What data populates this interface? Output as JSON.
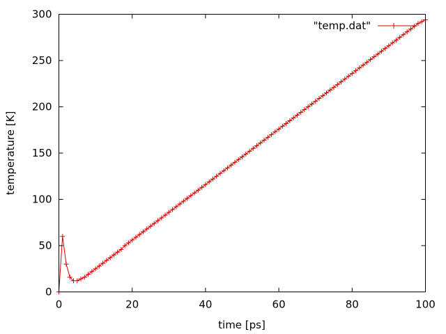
{
  "chart_data": {
    "type": "line",
    "title": "",
    "xlabel": "time [ps]",
    "ylabel": "temperature [K]",
    "xlim": [
      0,
      100
    ],
    "ylim": [
      0,
      300
    ],
    "xticks": [
      0,
      20,
      40,
      60,
      80,
      100
    ],
    "yticks": [
      0,
      50,
      100,
      150,
      200,
      250,
      300
    ],
    "grid": false,
    "legend_position": "top-right",
    "series": [
      {
        "name": "\"temp.dat\"",
        "color": "#e00000",
        "marker": "plus",
        "x": [
          0,
          1,
          2,
          3,
          4,
          5,
          6,
          7,
          8,
          9,
          10,
          11,
          12,
          13,
          14,
          15,
          16,
          17,
          18,
          19,
          20,
          21,
          22,
          23,
          24,
          25,
          26,
          27,
          28,
          29,
          30,
          31,
          32,
          33,
          34,
          35,
          36,
          37,
          38,
          39,
          40,
          41,
          42,
          43,
          44,
          45,
          46,
          47,
          48,
          49,
          50,
          51,
          52,
          53,
          54,
          55,
          56,
          57,
          58,
          59,
          60,
          61,
          62,
          63,
          64,
          65,
          66,
          67,
          68,
          69,
          70,
          71,
          72,
          73,
          74,
          75,
          76,
          77,
          78,
          79,
          80,
          81,
          82,
          83,
          84,
          85,
          86,
          87,
          88,
          89,
          90,
          91,
          92,
          93,
          94,
          95,
          96,
          97,
          98,
          99,
          100
        ],
        "y": [
          0,
          60,
          30,
          16,
          12,
          12,
          14,
          16,
          19,
          22,
          25,
          28,
          31,
          34,
          37,
          40,
          43,
          46,
          50,
          53,
          56,
          59,
          62,
          65,
          68,
          71,
          74,
          77,
          80,
          83,
          86,
          89,
          92,
          95,
          98,
          101,
          104,
          107,
          110,
          113,
          116,
          119,
          122,
          125,
          128,
          131,
          134,
          137,
          140,
          143,
          146,
          149,
          152,
          155,
          158,
          161,
          164,
          167,
          170,
          173,
          176,
          179,
          182,
          185,
          188,
          191,
          194,
          197,
          200,
          203,
          206,
          209,
          212,
          215,
          218,
          221,
          224,
          227,
          230,
          233,
          236,
          239,
          242,
          245,
          248,
          251,
          254,
          257,
          260,
          263,
          266,
          269,
          272,
          275,
          278,
          281,
          284,
          287,
          290,
          292,
          294
        ]
      }
    ]
  }
}
